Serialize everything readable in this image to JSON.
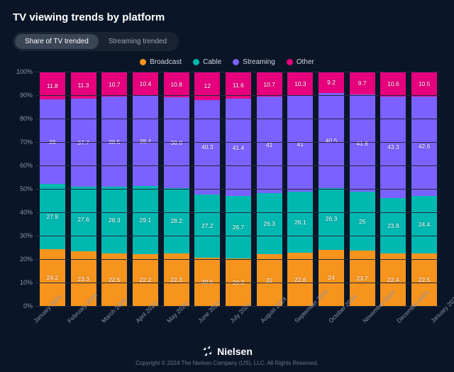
{
  "title": "TV viewing trends by platform",
  "tabs": [
    {
      "label": "Share of TV trended",
      "active": true
    },
    {
      "label": "Streaming trended",
      "active": false
    }
  ],
  "chart": {
    "type": "stacked-bar",
    "background_color": "#0a1628",
    "grid_color": "#1e2a3e",
    "text_color": "#ffffff",
    "axis_label_color": "#8a95a8",
    "label_fontsize": 9,
    "value_fontsize": 8.5,
    "ylim": [
      0,
      100
    ],
    "ytick_step": 10,
    "y_suffix": "%",
    "bar_width_ratio": 0.82,
    "series": [
      {
        "name": "Broadcast",
        "color": "#f7941d"
      },
      {
        "name": "Cable",
        "color": "#00b8b0"
      },
      {
        "name": "Streaming",
        "color": "#7b61ff"
      },
      {
        "name": "Other",
        "color": "#e6007e"
      }
    ],
    "categories": [
      "January 2024",
      "February 2024",
      "March 2024",
      "April 2024",
      "May 2024",
      "June 2024",
      "July 2024",
      "August 2024",
      "September 2024",
      "October 2024",
      "November 2024",
      "December 2024",
      "January 2025"
    ],
    "values": {
      "Broadcast": [
        24.2,
        23.3,
        22.5,
        22.2,
        22.3,
        20.5,
        20.3,
        22.0,
        22.6,
        24.0,
        23.7,
        22.4,
        22.5
      ],
      "Cable": [
        27.9,
        27.6,
        28.3,
        29.1,
        28.2,
        27.2,
        26.7,
        26.3,
        26.1,
        26.3,
        25.0,
        23.8,
        24.4
      ],
      "Streaming": [
        36.0,
        37.7,
        38.5,
        38.4,
        38.8,
        40.3,
        41.4,
        41.0,
        41.0,
        40.5,
        41.6,
        43.3,
        42.6
      ],
      "Other": [
        11.8,
        11.3,
        10.7,
        10.4,
        10.8,
        12.0,
        11.6,
        10.7,
        10.3,
        9.2,
        9.7,
        10.6,
        10.5
      ]
    }
  },
  "footer": {
    "brand": "Nielsen",
    "copyright": "Copyright © 2024 The Nielsen Company (US), LLC. All Rights Reserved."
  }
}
